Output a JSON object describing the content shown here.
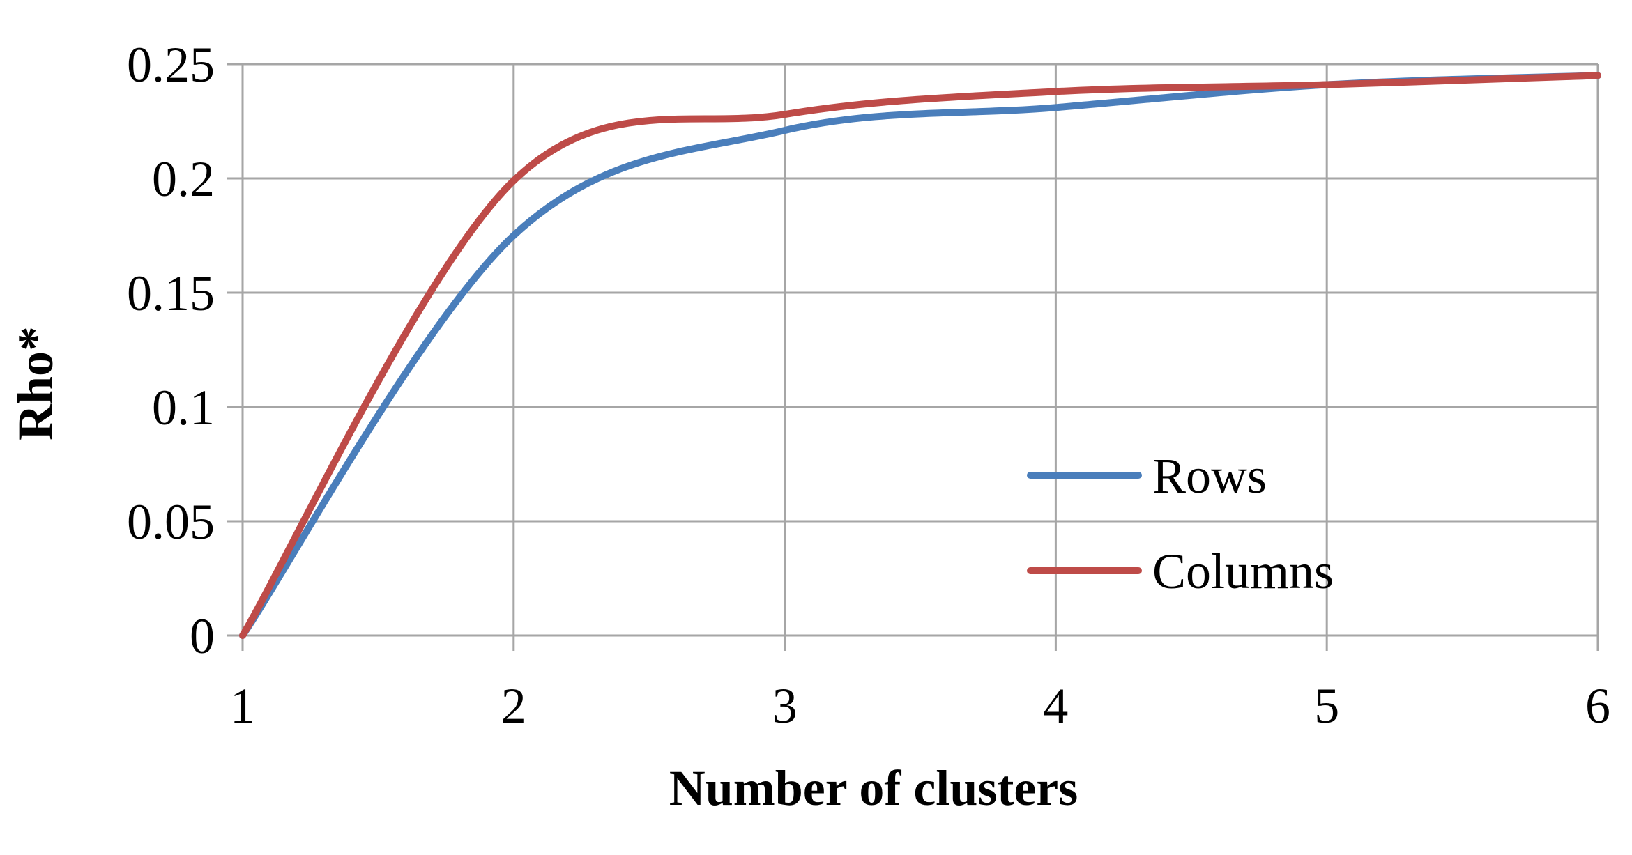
{
  "chart_data": {
    "type": "line",
    "title": "",
    "xlabel": "Number of clusters",
    "ylabel": "Rho*",
    "xlim": [
      1,
      6
    ],
    "ylim": [
      0,
      0.25
    ],
    "xticks": [
      {
        "value": 1,
        "label": "1"
      },
      {
        "value": 2,
        "label": "2"
      },
      {
        "value": 3,
        "label": "3"
      },
      {
        "value": 4,
        "label": "4"
      },
      {
        "value": 5,
        "label": "5"
      },
      {
        "value": 6,
        "label": "6"
      }
    ],
    "yticks": [
      {
        "value": 0,
        "label": "0"
      },
      {
        "value": 0.05,
        "label": "0.05"
      },
      {
        "value": 0.1,
        "label": "0.1"
      },
      {
        "value": 0.15,
        "label": "0.15"
      },
      {
        "value": 0.2,
        "label": "0.2"
      },
      {
        "value": 0.25,
        "label": "0.25"
      }
    ],
    "grid": true,
    "legend_position": "lower-right",
    "series": [
      {
        "name": "Rows",
        "color": "#4a7ebb",
        "x": [
          1,
          2,
          3,
          4,
          5,
          6
        ],
        "values": [
          0,
          0.175,
          0.221,
          0.231,
          0.241,
          0.245
        ]
      },
      {
        "name": "Columns",
        "color": "#be4b48",
        "x": [
          1,
          2,
          3,
          4,
          5,
          6
        ],
        "values": [
          0,
          0.199,
          0.228,
          0.238,
          0.241,
          0.245
        ]
      }
    ]
  }
}
